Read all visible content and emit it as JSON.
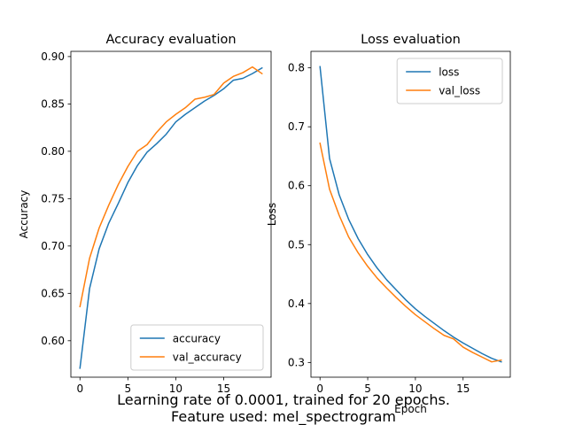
{
  "figure": {
    "caption_line1": "Learning rate of 0.0001, trained for 20 epochs.",
    "caption_line2": "Feature used: mel_spectrogram"
  },
  "chart_data": [
    {
      "type": "line",
      "title": "Accuracy evaluation",
      "xlabel": "",
      "ylabel": "Accuracy",
      "xlim": [
        -0.95,
        19.95
      ],
      "ylim": [
        0.5615,
        0.9055
      ],
      "xticks": [
        0,
        5,
        10,
        15
      ],
      "xtick_labels": [
        "0",
        "5",
        "10",
        "15"
      ],
      "yticks": [
        0.6,
        0.65,
        0.7,
        0.75,
        0.8,
        0.85,
        0.9
      ],
      "ytick_labels": [
        "0.60",
        "0.65",
        "0.70",
        "0.75",
        "0.80",
        "0.85",
        "0.90"
      ],
      "grid": false,
      "legend_position": "lower-right",
      "x": [
        0,
        1,
        2,
        3,
        4,
        5,
        6,
        7,
        8,
        9,
        10,
        11,
        12,
        13,
        14,
        15,
        16,
        17,
        18,
        19
      ],
      "series": [
        {
          "name": "accuracy",
          "color": "#1f77b4",
          "values": [
            0.571,
            0.655,
            0.697,
            0.724,
            0.745,
            0.767,
            0.785,
            0.799,
            0.808,
            0.818,
            0.831,
            0.839,
            0.846,
            0.853,
            0.859,
            0.866,
            0.875,
            0.877,
            0.882,
            0.888
          ]
        },
        {
          "name": "val_accuracy",
          "color": "#ff7f0e",
          "values": [
            0.636,
            0.687,
            0.719,
            0.743,
            0.765,
            0.784,
            0.8,
            0.807,
            0.82,
            0.831,
            0.839,
            0.846,
            0.855,
            0.857,
            0.86,
            0.872,
            0.879,
            0.883,
            0.889,
            0.882
          ]
        }
      ]
    },
    {
      "type": "line",
      "title": "Loss evaluation",
      "xlabel": "Epoch",
      "ylabel": "Loss",
      "xlim": [
        -0.95,
        19.95
      ],
      "ylim": [
        0.275,
        0.828
      ],
      "xticks": [
        0,
        5,
        10,
        15
      ],
      "xtick_labels": [
        "0",
        "5",
        "10",
        "15"
      ],
      "yticks": [
        0.3,
        0.4,
        0.5,
        0.6,
        0.7,
        0.8
      ],
      "ytick_labels": [
        "0.3",
        "0.4",
        "0.5",
        "0.6",
        "0.7",
        "0.8"
      ],
      "grid": false,
      "legend_position": "upper-right",
      "x": [
        0,
        1,
        2,
        3,
        4,
        5,
        6,
        7,
        8,
        9,
        10,
        11,
        12,
        13,
        14,
        15,
        16,
        17,
        18,
        19
      ],
      "series": [
        {
          "name": "loss",
          "color": "#1f77b4",
          "values": [
            0.802,
            0.646,
            0.585,
            0.543,
            0.51,
            0.483,
            0.46,
            0.44,
            0.423,
            0.406,
            0.391,
            0.378,
            0.366,
            0.354,
            0.343,
            0.333,
            0.324,
            0.315,
            0.307,
            0.301
          ]
        },
        {
          "name": "val_loss",
          "color": "#ff7f0e",
          "values": [
            0.672,
            0.594,
            0.55,
            0.513,
            0.486,
            0.463,
            0.443,
            0.426,
            0.41,
            0.395,
            0.381,
            0.369,
            0.357,
            0.346,
            0.34,
            0.326,
            0.317,
            0.309,
            0.301,
            0.304
          ]
        }
      ]
    }
  ]
}
